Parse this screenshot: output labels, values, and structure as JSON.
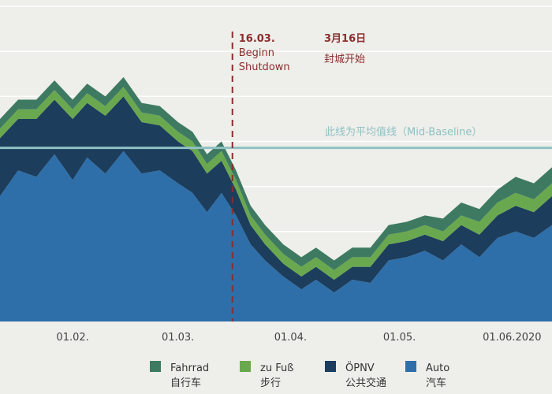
{
  "chart_data": {
    "type": "area",
    "stacked": true,
    "x_start": "2020-01-12",
    "x_end": "2020-06-12",
    "ylim": [
      0,
      100
    ],
    "grid": true,
    "legend_placement": "bottom",
    "x_ticks": [
      {
        "date": "2020-02-01",
        "label": "01.02."
      },
      {
        "date": "2020-03-01",
        "label": "01.03."
      },
      {
        "date": "2020-04-01",
        "label": "01.04."
      },
      {
        "date": "2020-05-01",
        "label": "01.05."
      },
      {
        "date": "2020-06-01",
        "label": "01.06.2020"
      }
    ],
    "series": [
      {
        "name": "Auto",
        "name_cn": "汽车",
        "color": "#2e6faa",
        "points": [
          [
            "2020-01-12",
            39
          ],
          [
            "2020-01-17",
            47
          ],
          [
            "2020-01-22",
            45
          ],
          [
            "2020-01-27",
            52
          ],
          [
            "2020-02-01",
            44
          ],
          [
            "2020-02-05",
            51
          ],
          [
            "2020-02-10",
            46
          ],
          [
            "2020-02-15",
            53
          ],
          [
            "2020-02-20",
            46
          ],
          [
            "2020-02-25",
            47
          ],
          [
            "2020-03-01",
            43
          ],
          [
            "2020-03-05",
            40
          ],
          [
            "2020-03-09",
            34
          ],
          [
            "2020-03-13",
            40
          ],
          [
            "2020-03-17",
            33
          ],
          [
            "2020-03-21",
            24
          ],
          [
            "2020-03-25",
            19
          ],
          [
            "2020-03-30",
            14
          ],
          [
            "2020-04-04",
            10
          ],
          [
            "2020-04-08",
            13
          ],
          [
            "2020-04-13",
            9
          ],
          [
            "2020-04-18",
            13
          ],
          [
            "2020-04-23",
            12
          ],
          [
            "2020-04-28",
            19
          ],
          [
            "2020-05-03",
            20
          ],
          [
            "2020-05-08",
            22
          ],
          [
            "2020-05-13",
            19
          ],
          [
            "2020-05-18",
            24
          ],
          [
            "2020-05-23",
            20
          ],
          [
            "2020-05-28",
            26
          ],
          [
            "2020-06-02",
            28
          ],
          [
            "2020-06-07",
            26
          ],
          [
            "2020-06-12",
            30
          ]
        ]
      },
      {
        "name": "ÖPNV",
        "name_cn": "公共交通",
        "color": "#1c3d5c",
        "points": [
          [
            "2020-01-12",
            18
          ],
          [
            "2020-01-17",
            16
          ],
          [
            "2020-01-22",
            18
          ],
          [
            "2020-01-27",
            17
          ],
          [
            "2020-02-01",
            19
          ],
          [
            "2020-02-05",
            17
          ],
          [
            "2020-02-10",
            18
          ],
          [
            "2020-02-15",
            17
          ],
          [
            "2020-02-20",
            16
          ],
          [
            "2020-02-25",
            14
          ],
          [
            "2020-03-01",
            13
          ],
          [
            "2020-03-05",
            13
          ],
          [
            "2020-03-09",
            12
          ],
          [
            "2020-03-13",
            10
          ],
          [
            "2020-03-17",
            8
          ],
          [
            "2020-03-21",
            6
          ],
          [
            "2020-03-25",
            5
          ],
          [
            "2020-03-30",
            4
          ],
          [
            "2020-04-04",
            4
          ],
          [
            "2020-04-08",
            4
          ],
          [
            "2020-04-13",
            4
          ],
          [
            "2020-04-18",
            4
          ],
          [
            "2020-04-23",
            5
          ],
          [
            "2020-04-28",
            5
          ],
          [
            "2020-05-03",
            5
          ],
          [
            "2020-05-08",
            5
          ],
          [
            "2020-05-13",
            6
          ],
          [
            "2020-05-18",
            6
          ],
          [
            "2020-05-23",
            7
          ],
          [
            "2020-05-28",
            7
          ],
          [
            "2020-06-02",
            8
          ],
          [
            "2020-06-07",
            8
          ],
          [
            "2020-06-12",
            9
          ]
        ]
      },
      {
        "name": "zu Fuß",
        "name_cn": "步行",
        "color": "#6aa84f",
        "points": [
          [
            "2020-01-12",
            3
          ],
          [
            "2020-01-17",
            3
          ],
          [
            "2020-01-22",
            3
          ],
          [
            "2020-01-27",
            3
          ],
          [
            "2020-02-01",
            3
          ],
          [
            "2020-02-05",
            3
          ],
          [
            "2020-02-10",
            3
          ],
          [
            "2020-02-15",
            3
          ],
          [
            "2020-02-20",
            3
          ],
          [
            "2020-02-25",
            3
          ],
          [
            "2020-03-01",
            3
          ],
          [
            "2020-03-05",
            3
          ],
          [
            "2020-03-09",
            3
          ],
          [
            "2020-03-13",
            3
          ],
          [
            "2020-03-17",
            3
          ],
          [
            "2020-03-21",
            3
          ],
          [
            "2020-03-25",
            3
          ],
          [
            "2020-03-30",
            3
          ],
          [
            "2020-04-04",
            3
          ],
          [
            "2020-04-08",
            3
          ],
          [
            "2020-04-13",
            3
          ],
          [
            "2020-04-18",
            3
          ],
          [
            "2020-04-23",
            3
          ],
          [
            "2020-04-28",
            3
          ],
          [
            "2020-05-03",
            3
          ],
          [
            "2020-05-08",
            3
          ],
          [
            "2020-05-13",
            3
          ],
          [
            "2020-05-18",
            3
          ],
          [
            "2020-05-23",
            4
          ],
          [
            "2020-05-28",
            4
          ],
          [
            "2020-06-02",
            4
          ],
          [
            "2020-06-07",
            4
          ],
          [
            "2020-06-12",
            4
          ]
        ]
      },
      {
        "name": "Fahrrad",
        "name_cn": "自行车",
        "color": "#3e7a62",
        "points": [
          [
            "2020-01-12",
            3
          ],
          [
            "2020-01-17",
            3
          ],
          [
            "2020-01-22",
            3
          ],
          [
            "2020-01-27",
            3
          ],
          [
            "2020-02-01",
            3
          ],
          [
            "2020-02-05",
            3
          ],
          [
            "2020-02-10",
            3
          ],
          [
            "2020-02-15",
            3
          ],
          [
            "2020-02-20",
            3
          ],
          [
            "2020-02-25",
            3
          ],
          [
            "2020-03-01",
            3
          ],
          [
            "2020-03-05",
            3
          ],
          [
            "2020-03-09",
            3
          ],
          [
            "2020-03-13",
            3
          ],
          [
            "2020-03-17",
            3
          ],
          [
            "2020-03-21",
            3
          ],
          [
            "2020-03-25",
            3
          ],
          [
            "2020-03-30",
            3
          ],
          [
            "2020-04-04",
            3
          ],
          [
            "2020-04-08",
            3
          ],
          [
            "2020-04-13",
            3
          ],
          [
            "2020-04-18",
            3
          ],
          [
            "2020-04-23",
            3
          ],
          [
            "2020-04-28",
            3
          ],
          [
            "2020-05-03",
            3
          ],
          [
            "2020-05-08",
            3
          ],
          [
            "2020-05-13",
            4
          ],
          [
            "2020-05-18",
            4
          ],
          [
            "2020-05-23",
            4
          ],
          [
            "2020-05-28",
            4
          ],
          [
            "2020-06-02",
            5
          ],
          [
            "2020-06-07",
            5
          ],
          [
            "2020-06-12",
            5
          ]
        ]
      }
    ],
    "baseline": {
      "label": "此线为平均值线（Mid-Baseline）",
      "value": 54,
      "color": "#8fc1c3"
    },
    "shutdown": {
      "date": "2020-03-16",
      "label_de": [
        "16.03.",
        "Beginn",
        "Shutdown"
      ],
      "label_cn": [
        "3月16日",
        "封城开始"
      ],
      "color": "#8b2d2d"
    }
  }
}
